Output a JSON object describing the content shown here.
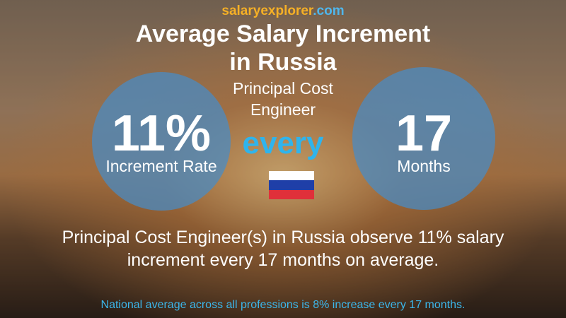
{
  "logo": {
    "part1": "salary",
    "part2": "explorer",
    "part3": ".com"
  },
  "header": {
    "title_line1": "Average Salary Increment",
    "title_line2": "in Russia",
    "subtitle_line1": "Principal Cost",
    "subtitle_line2": "Engineer"
  },
  "left_circle": {
    "value": "11%",
    "label": "Increment Rate"
  },
  "middle": {
    "word": "every"
  },
  "right_circle": {
    "value": "17",
    "label": "Months"
  },
  "description": {
    "line1": "Principal Cost Engineer(s) in Russia observe 11% salary",
    "line2": "increment every 17 months on average."
  },
  "footer": {
    "note": "National average across all professions is 8% increase every 17 months."
  }
}
